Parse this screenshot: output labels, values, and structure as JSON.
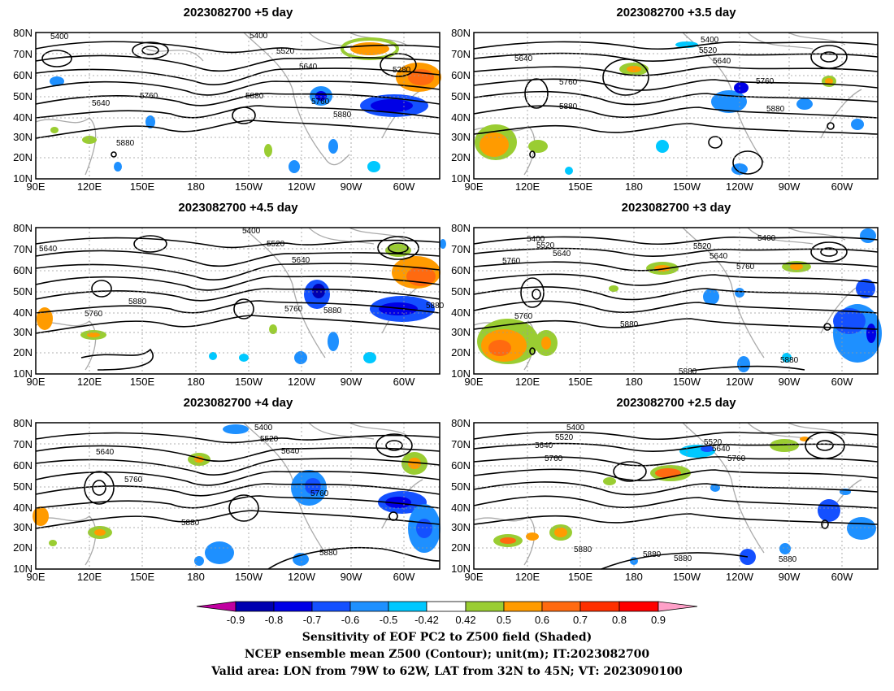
{
  "panels": [
    {
      "title": "2023082700  +5 day"
    },
    {
      "title": "2023082700  +3.5  day"
    },
    {
      "title": "2023082700  +4.5  day"
    },
    {
      "title": "2023082700  +3  day"
    },
    {
      "title": "2023082700  +4  day"
    },
    {
      "title": "2023082700  +2.5  day"
    }
  ],
  "axes": {
    "lat_labels": [
      "80N",
      "70N",
      "60N",
      "50N",
      "40N",
      "30N",
      "20N",
      "10N"
    ],
    "lon_labels": [
      "90E",
      "120E",
      "150E",
      "180",
      "150W",
      "120W",
      "90W",
      "60W"
    ]
  },
  "contour_labels": [
    "5400",
    "5520",
    "5640",
    "5760",
    "5880",
    "5280"
  ],
  "colorbar": {
    "labels": [
      "-0.9",
      "-0.8",
      "-0.7",
      "-0.6",
      "-0.5",
      "-0.42",
      "0.42",
      "0.5",
      "0.6",
      "0.7",
      "0.8",
      "0.9"
    ],
    "colors": [
      "#c000a0",
      "#0000b0",
      "#0000e6",
      "#1450ff",
      "#1e90ff",
      "#00c8ff",
      "#ffffff",
      "#9acd32",
      "#ff9b00",
      "#ff6a10",
      "#ff3000",
      "#ff0000",
      "#ffa0c8"
    ]
  },
  "caption": {
    "line1": "Sensitivity of EOF PC2 to Z500 field (Shaded)",
    "line2": "NCEP ensemble mean Z500 (Contour); unit(m); IT:2023082700",
    "line3": "Valid area: LON from 79W to 62W, LAT from 32N to 45N; VT: 2023090100"
  }
}
